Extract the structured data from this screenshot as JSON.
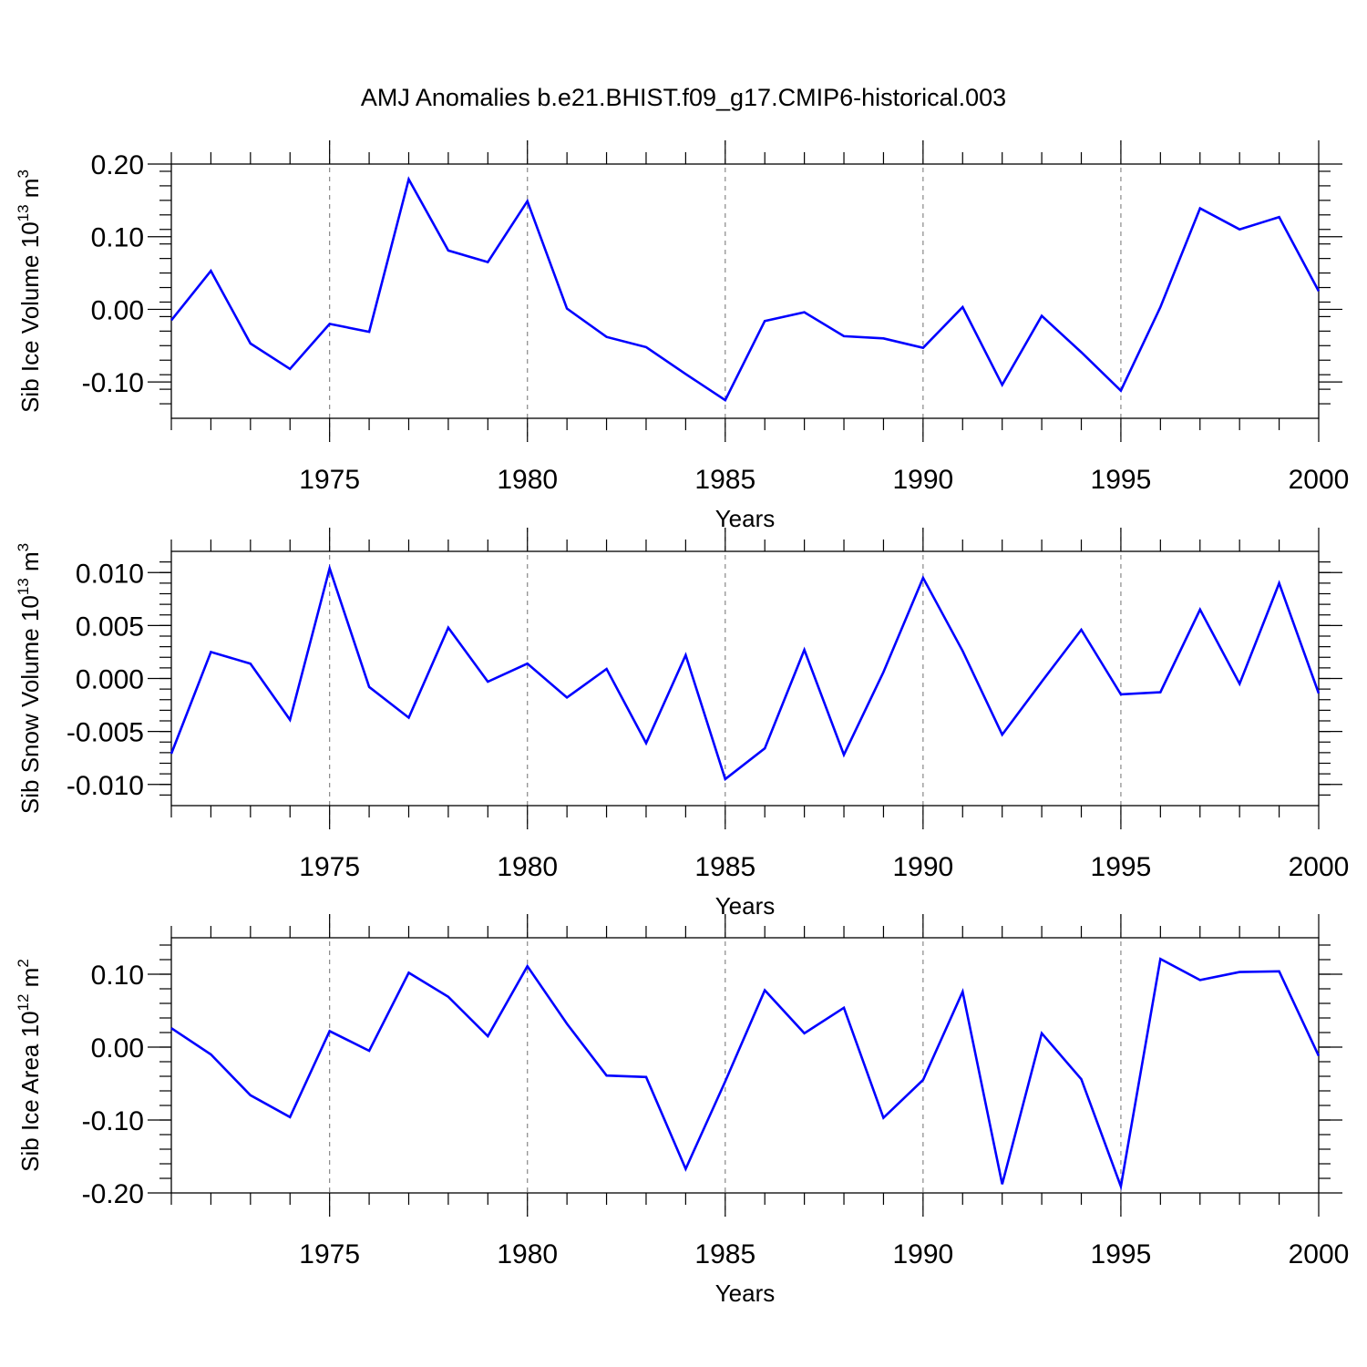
{
  "title": "AMJ Anomalies b.e21.BHIST.f09_g17.CMIP6-historical.003",
  "chart_data": [
    {
      "type": "line",
      "ylabel_base": "Sib Ice Volume 10",
      "ylabel_exp": "13",
      "ylabel_unit": " m",
      "ylabel_unit_exp": "3",
      "xlabel": "Years",
      "xlim": [
        1971,
        2000
      ],
      "ylim": [
        -0.15,
        0.2
      ],
      "yticks": [
        -0.1,
        0.0,
        0.1,
        0.2
      ],
      "ytick_labels": [
        "-0.10",
        "0.00",
        "0.10",
        "0.20"
      ],
      "yminor_step": 0.02,
      "xticks": [
        1975,
        1980,
        1985,
        1990,
        1995,
        2000
      ],
      "xtick_labels": [
        "1975",
        "1980",
        "1985",
        "1990",
        "1995",
        "2000"
      ],
      "gridlines_x": [
        1975,
        1980,
        1985,
        1990,
        1995
      ],
      "series": [
        {
          "name": "Sib Ice Volume",
          "color": "#0000ff",
          "x": [
            1971,
            1972,
            1973,
            1974,
            1975,
            1976,
            1977,
            1978,
            1979,
            1980,
            1981,
            1982,
            1983,
            1984,
            1985,
            1986,
            1987,
            1988,
            1989,
            1990,
            1991,
            1992,
            1993,
            1994,
            1995,
            1996,
            1997,
            1998,
            1999,
            2000
          ],
          "values": [
            -0.015,
            0.053,
            -0.047,
            -0.082,
            -0.02,
            -0.031,
            0.179,
            0.081,
            0.065,
            0.149,
            0.001,
            -0.038,
            -0.052,
            -0.089,
            -0.125,
            -0.016,
            -0.004,
            -0.037,
            -0.04,
            -0.053,
            0.003,
            -0.104,
            -0.009,
            -0.059,
            -0.112,
            0.003,
            0.139,
            0.11,
            0.127,
            0.025
          ]
        }
      ]
    },
    {
      "type": "line",
      "ylabel_base": "Sib Snow Volume 10",
      "ylabel_exp": "13",
      "ylabel_unit": " m",
      "ylabel_unit_exp": "3",
      "xlabel": "Years",
      "xlim": [
        1971,
        2000
      ],
      "ylim": [
        -0.012,
        0.012
      ],
      "yticks": [
        -0.01,
        -0.005,
        0.0,
        0.005,
        0.01
      ],
      "ytick_labels": [
        "-0.010",
        "-0.005",
        "0.000",
        "0.005",
        "0.010"
      ],
      "yminor_step": 0.001,
      "xticks": [
        1975,
        1980,
        1985,
        1990,
        1995,
        2000
      ],
      "xtick_labels": [
        "1975",
        "1980",
        "1985",
        "1990",
        "1995",
        "2000"
      ],
      "gridlines_x": [
        1975,
        1980,
        1985,
        1990,
        1995
      ],
      "series": [
        {
          "name": "Sib Snow Volume",
          "color": "#0000ff",
          "x": [
            1971,
            1972,
            1973,
            1974,
            1975,
            1976,
            1977,
            1978,
            1979,
            1980,
            1981,
            1982,
            1983,
            1984,
            1985,
            1986,
            1987,
            1988,
            1989,
            1990,
            1991,
            1992,
            1993,
            1994,
            1995,
            1996,
            1997,
            1998,
            1999,
            2000
          ],
          "values": [
            -0.0071,
            0.0025,
            0.0014,
            -0.0039,
            0.0104,
            -0.0008,
            -0.0037,
            0.0048,
            -0.0003,
            0.0014,
            -0.0018,
            0.0009,
            -0.0061,
            0.0022,
            -0.0095,
            -0.0066,
            0.0027,
            -0.0072,
            0.0006,
            0.0095,
            0.0026,
            -0.0053,
            -0.0003,
            0.0046,
            -0.0015,
            -0.0013,
            0.0065,
            -0.0005,
            0.009,
            -0.0014
          ]
        }
      ]
    },
    {
      "type": "line",
      "ylabel_base": "Sib Ice Area 10",
      "ylabel_exp": "12",
      "ylabel_unit": " m",
      "ylabel_unit_exp": "2",
      "xlabel": "Years",
      "xlim": [
        1971,
        2000
      ],
      "ylim": [
        -0.2,
        0.15
      ],
      "yticks": [
        -0.2,
        -0.1,
        0.0,
        0.1
      ],
      "ytick_labels": [
        "-0.20",
        "-0.10",
        "0.00",
        "0.10"
      ],
      "yminor_step": 0.02,
      "xticks": [
        1975,
        1980,
        1985,
        1990,
        1995,
        2000
      ],
      "xtick_labels": [
        "1975",
        "1980",
        "1985",
        "1990",
        "1995",
        "2000"
      ],
      "gridlines_x": [
        1975,
        1980,
        1985,
        1990,
        1995
      ],
      "series": [
        {
          "name": "Sib Ice Area",
          "color": "#0000ff",
          "x": [
            1971,
            1972,
            1973,
            1974,
            1975,
            1976,
            1977,
            1978,
            1979,
            1980,
            1981,
            1982,
            1983,
            1984,
            1985,
            1986,
            1987,
            1988,
            1989,
            1990,
            1991,
            1992,
            1993,
            1994,
            1995,
            1996,
            1997,
            1998,
            1999,
            2000
          ],
          "values": [
            0.026,
            -0.01,
            -0.066,
            -0.096,
            0.022,
            -0.005,
            0.102,
            0.069,
            0.015,
            0.111,
            0.032,
            -0.039,
            -0.041,
            -0.167,
            -0.047,
            0.078,
            0.019,
            0.054,
            -0.097,
            -0.045,
            0.076,
            -0.188,
            0.019,
            -0.044,
            -0.191,
            0.121,
            0.092,
            0.103,
            0.104,
            -0.012
          ]
        }
      ]
    }
  ]
}
